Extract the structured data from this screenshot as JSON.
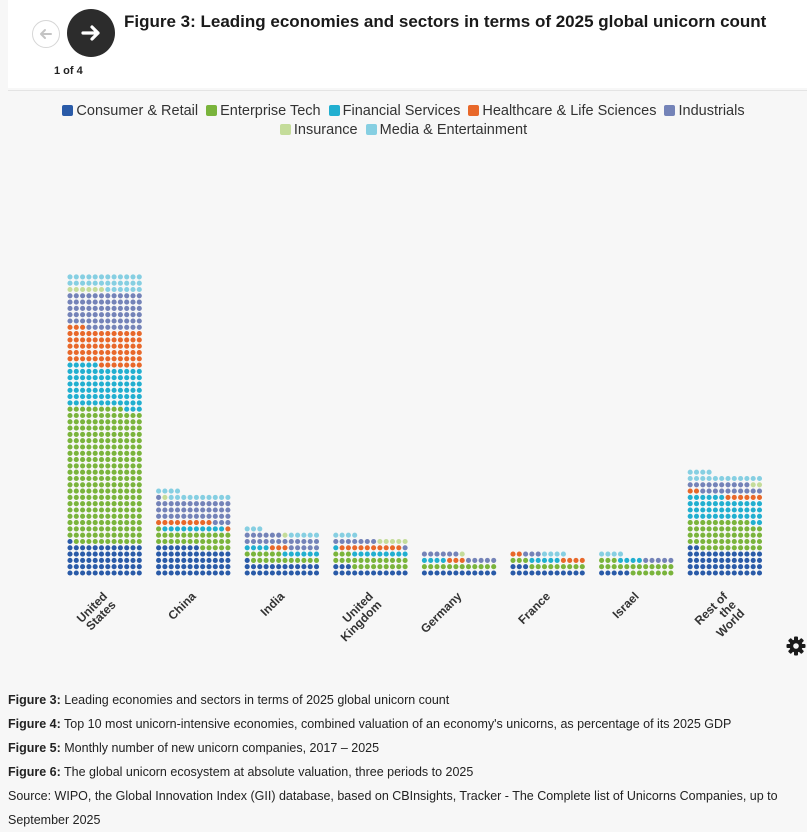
{
  "header": {
    "title": "Figure 3: Leading economies and sectors in terms of 2025 global unicorn count",
    "pager": "1 of 4",
    "prev_icon": "arrow-left-icon",
    "next_icon": "arrow-right-icon"
  },
  "colors": {
    "Consumer & Retail": "#2a5ba8",
    "Enterprise Tech": "#7ab43c",
    "Financial Services": "#21afd0",
    "Healthcare & Life Sciences": "#e8682a",
    "Industrials": "#7483b8",
    "Insurance": "#c4dc9a",
    "Media & Entertainment": "#86cfe2"
  },
  "chart_data": {
    "type": "waffle",
    "title": "Figure 3: Leading economies and sectors in terms of 2025 global unicorn count",
    "unit": "one dot = one unicorn company",
    "legend": [
      "Consumer & Retail",
      "Enterprise Tech",
      "Financial Services",
      "Healthcare & Life Sciences",
      "Industrials",
      "Insurance",
      "Media & Entertainment"
    ],
    "categories": [
      "United States",
      "China",
      "India",
      "United Kingdom",
      "Germany",
      "France",
      "Israel",
      "Rest of the World"
    ],
    "series": [
      {
        "name": "Consumer & Retail",
        "values": [
          61,
          55,
          25,
          15,
          12,
          15,
          5,
          50
        ]
      },
      {
        "name": "Enterprise Tech",
        "values": [
          260,
          30,
          17,
          24,
          12,
          12,
          22,
          56
        ]
      },
      {
        "name": "Financial Services",
        "values": [
          80,
          10,
          10,
          10,
          4,
          5,
          4,
          44
        ]
      },
      {
        "name": "Healthcare & Life Sciences",
        "values": [
          70,
          10,
          3,
          10,
          3,
          6,
          0,
          8
        ]
      },
      {
        "name": "Industrials",
        "values": [
          69,
          40,
          23,
          8,
          11,
          3,
          5,
          20
        ]
      },
      {
        "name": "Insurance",
        "values": [
          6,
          1,
          1,
          5,
          1,
          0,
          0,
          2
        ]
      },
      {
        "name": "Media & Entertainment",
        "values": [
          30,
          14,
          8,
          4,
          0,
          4,
          4,
          16
        ]
      }
    ]
  },
  "notes": [
    {
      "label": "Figure 3:",
      "text": " Leading economies and sectors in terms of 2025 global unicorn count"
    },
    {
      "label": "Figure 4:",
      "text": " Top 10 most unicorn-intensive economies, combined valuation of an economy's unicorns, as percentage of its 2025 GDP"
    },
    {
      "label": "Figure 5:",
      "text": " Monthly number of new unicorn companies, 2017 – 2025"
    },
    {
      "label": "Figure 6:",
      "text": " The global unicorn ecosystem at absolute valuation, three periods to 2025"
    }
  ],
  "source": "Source: WIPO, the Global Innovation Index (GII) database, based on CBInsights, Tracker - The Complete list of Unicorns Companies, up to September 2025",
  "settings_icon": "gear-icon"
}
